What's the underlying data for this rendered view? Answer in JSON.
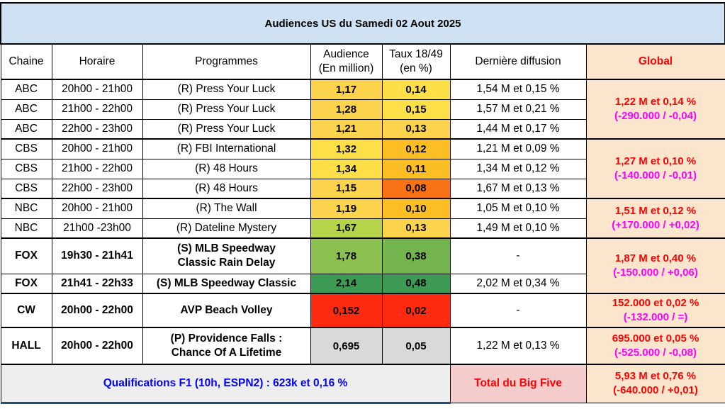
{
  "title": "Audiences US du Samedi 02 Aout 2025",
  "headers": {
    "chaine": "Chaine",
    "horaire": "Horaire",
    "programmes": "Programmes",
    "audience_l1": "Audience",
    "audience_l2": "(En million)",
    "taux_l1": "Taux 18/49",
    "taux_l2": "(en %)",
    "derniere": "Dernière diffusion",
    "global": "Global"
  },
  "rows": [
    {
      "chaine": "ABC",
      "horaire": "20h00 - 21h00",
      "programme": "(R) Press Your Luck",
      "audience": "1,17",
      "taux": "0,14",
      "derniere": "1,54 M et 0,15 %",
      "aud_color": "#fcd34d",
      "taux_color": "#fde047"
    },
    {
      "chaine": "ABC",
      "horaire": "21h00 - 22h00",
      "programme": "(R) Press Your Luck",
      "audience": "1,28",
      "taux": "0,15",
      "derniere": "1,57 M et 0,21 %",
      "aud_color": "#fcd34d",
      "taux_color": "#fde047"
    },
    {
      "chaine": "ABC",
      "horaire": "22h00 - 23h00",
      "programme": "(R) Press Your Luck",
      "audience": "1,21",
      "taux": "0,13",
      "derniere": "1,44 M et 0,17 %",
      "aud_color": "#fcd34d",
      "taux_color": "#fcd34d"
    },
    {
      "chaine": "CBS",
      "horaire": "20h00 - 21h00",
      "programme": "(R) FBI International",
      "audience": "1,32",
      "taux": "0,12",
      "derniere": "1,21 M et 0,09 %",
      "aud_color": "#fde047",
      "taux_color": "#fbbf24"
    },
    {
      "chaine": "CBS",
      "horaire": "21h00 - 22h00",
      "programme": "(R) 48 Hours",
      "audience": "1,34",
      "taux": "0,11",
      "derniere": "1,34 M et 0,12 %",
      "aud_color": "#fde047",
      "taux_color": "#fbbf24"
    },
    {
      "chaine": "CBS",
      "horaire": "22h00 - 23h00",
      "programme": "(R) 48 Hours",
      "audience": "1,15",
      "taux": "0,08",
      "derniere": "1,67 M et 0,13 %",
      "aud_color": "#fcd34d",
      "taux_color": "#f97316"
    },
    {
      "chaine": "NBC",
      "horaire": "20h00 - 21h00",
      "programme": "(R) The Wall",
      "audience": "1,19",
      "taux": "0,10",
      "derniere": "1,05 M et 0,10 %",
      "aud_color": "#fcd34d",
      "taux_color": "#fbbf24"
    },
    {
      "chaine": "NBC",
      "horaire": "21h00 -23h00",
      "programme": "(R) Dateline Mystery",
      "audience": "1,67",
      "taux": "0,13",
      "derniere": "1,49 M et 0,10 %",
      "aud_color": "#b5d44a",
      "taux_color": "#fcd34d"
    },
    {
      "chaine": "FOX",
      "horaire": "19h30 - 21h41",
      "programme_l1": "(S) MLB Speedway",
      "programme_l2": "Classic Rain Delay",
      "audience": "1,78",
      "taux": "0,38",
      "derniere": "-",
      "aud_color": "#8cc152",
      "taux_color": "#74b44f"
    },
    {
      "chaine": "FOX",
      "horaire": "21h41 - 22h33",
      "programme": "(S) MLB Speedway Classic",
      "audience": "2,14",
      "taux": "0,48",
      "derniere": "2,02 M et 0,34 %",
      "aud_color": "#3c9a55",
      "taux_color": "#3c9a55"
    },
    {
      "chaine": "CW",
      "horaire": "20h00 - 22h00",
      "programme": "AVP Beach Volley",
      "audience": "0,152",
      "taux": "0,02",
      "derniere": "-",
      "aud_color": "#ff2a0f",
      "taux_color": "#ff2a0f"
    },
    {
      "chaine": "HALL",
      "horaire": "20h00 - 22h00",
      "programme_l1": "(P) Providence Falls :",
      "programme_l2": "Chance Of A Lifetime",
      "audience": "0,695",
      "taux": "0,05",
      "derniere": "1,22 M et 0,13 %",
      "aud_color": "#d9d9d9",
      "taux_color": "#d9d9d9"
    }
  ],
  "globals": {
    "abc": {
      "main": "1,22 M et 0,14 %",
      "diff": "(-290.000 / -0,04)"
    },
    "cbs": {
      "main": "1,27 M et 0,10 %",
      "diff": "(-140.000 / -0,01)"
    },
    "nbc": {
      "main": "1,51 M et 0,12 %",
      "diff": "(+170.000 / +0,02)"
    },
    "fox": {
      "main": "1,87 M et 0,40 %",
      "diff": "(-150.000 / +0,06)"
    },
    "cw": {
      "main": "152.000 et 0,02 %",
      "diff": "(-132.000 / =)"
    },
    "hall": {
      "main": "695.000 et 0,05 %",
      "diff": "(-525.000 / -0,08)"
    },
    "total": {
      "main": "5,93 M et 0,76 %",
      "diff": "(-640.000 / +0,01)"
    }
  },
  "footer": {
    "qualif": "Qualifications F1 (10h, ESPN2) : 623k et 0,16 %",
    "total_label": "Total du Big Five"
  }
}
